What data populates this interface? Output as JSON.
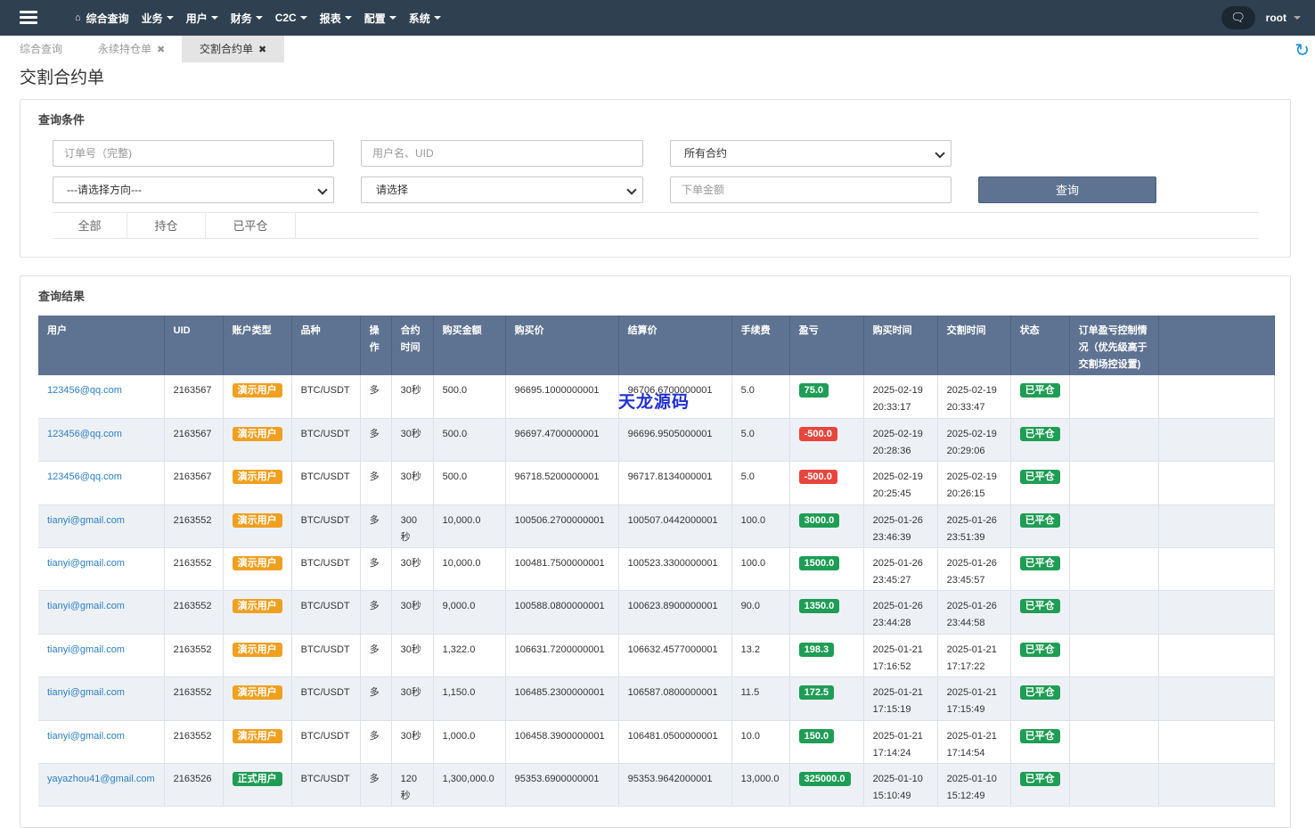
{
  "nav": {
    "items": [
      {
        "label": "综合查询",
        "dropdown": false
      },
      {
        "label": "业务",
        "dropdown": true
      },
      {
        "label": "用户",
        "dropdown": true
      },
      {
        "label": "财务",
        "dropdown": true
      },
      {
        "label": "C2C",
        "dropdown": true
      },
      {
        "label": "报表",
        "dropdown": true
      },
      {
        "label": "配置",
        "dropdown": true
      },
      {
        "label": "系统",
        "dropdown": true
      }
    ],
    "user": "root"
  },
  "tabs": [
    {
      "label": "综合查询",
      "closable": false,
      "active": false
    },
    {
      "label": "永续持仓单",
      "closable": true,
      "active": false
    },
    {
      "label": "交割合约单",
      "closable": true,
      "active": true
    }
  ],
  "page_title": "交割合约单",
  "query": {
    "title": "查询条件",
    "order_placeholder": "订单号（完整)",
    "user_placeholder": "用户名、UID",
    "contract_select": "所有合约",
    "direction_select": "---请选择方向---",
    "type_select": "请选择",
    "amount_placeholder": "下单金额",
    "query_button": "查询",
    "filter_tabs": [
      "全部",
      "持仓",
      "已平仓"
    ]
  },
  "results": {
    "title": "查询结果",
    "columns": [
      "用户",
      "UID",
      "账户类型",
      "品种",
      "操作",
      "合约时间",
      "购买金额",
      "购买价",
      "结算价",
      "手续费",
      "盈亏",
      "购买时间",
      "交割时间",
      "状态",
      "订单盈亏控制情况（优先级高于交割场控设置)",
      ""
    ],
    "rows": [
      {
        "user": "123456@qq.com",
        "uid": "2163567",
        "acct": "演示用户",
        "acct_type": "demo",
        "symbol": "BTC/USDT",
        "op": "多",
        "duration": "30秒",
        "amount": "500.0",
        "buy_price": "96695.1000000001",
        "settle_price": "96706.6700000001",
        "fee": "5.0",
        "pnl": "75.0",
        "pnl_sign": "pos",
        "buy_date": "2025-02-19",
        "buy_time": "20:33:17",
        "settle_date": "2025-02-19",
        "settle_time": "20:33:47",
        "status": "已平仓"
      },
      {
        "user": "123456@qq.com",
        "uid": "2163567",
        "acct": "演示用户",
        "acct_type": "demo",
        "symbol": "BTC/USDT",
        "op": "多",
        "duration": "30秒",
        "amount": "500.0",
        "buy_price": "96697.4700000001",
        "settle_price": "96696.9505000001",
        "fee": "5.0",
        "pnl": "-500.0",
        "pnl_sign": "neg",
        "buy_date": "2025-02-19",
        "buy_time": "20:28:36",
        "settle_date": "2025-02-19",
        "settle_time": "20:29:06",
        "status": "已平仓"
      },
      {
        "user": "123456@qq.com",
        "uid": "2163567",
        "acct": "演示用户",
        "acct_type": "demo",
        "symbol": "BTC/USDT",
        "op": "多",
        "duration": "30秒",
        "amount": "500.0",
        "buy_price": "96718.5200000001",
        "settle_price": "96717.8134000001",
        "fee": "5.0",
        "pnl": "-500.0",
        "pnl_sign": "neg",
        "buy_date": "2025-02-19",
        "buy_time": "20:25:45",
        "settle_date": "2025-02-19",
        "settle_time": "20:26:15",
        "status": "已平仓"
      },
      {
        "user": "tianyi@gmail.com",
        "uid": "2163552",
        "acct": "演示用户",
        "acct_type": "demo",
        "symbol": "BTC/USDT",
        "op": "多",
        "duration": "300秒",
        "amount": "10,000.0",
        "buy_price": "100506.2700000001",
        "settle_price": "100507.0442000001",
        "fee": "100.0",
        "pnl": "3000.0",
        "pnl_sign": "pos",
        "buy_date": "2025-01-26",
        "buy_time": "23:46:39",
        "settle_date": "2025-01-26",
        "settle_time": "23:51:39",
        "status": "已平仓"
      },
      {
        "user": "tianyi@gmail.com",
        "uid": "2163552",
        "acct": "演示用户",
        "acct_type": "demo",
        "symbol": "BTC/USDT",
        "op": "多",
        "duration": "30秒",
        "amount": "10,000.0",
        "buy_price": "100481.7500000001",
        "settle_price": "100523.3300000001",
        "fee": "100.0",
        "pnl": "1500.0",
        "pnl_sign": "pos",
        "buy_date": "2025-01-26",
        "buy_time": "23:45:27",
        "settle_date": "2025-01-26",
        "settle_time": "23:45:57",
        "status": "已平仓"
      },
      {
        "user": "tianyi@gmail.com",
        "uid": "2163552",
        "acct": "演示用户",
        "acct_type": "demo",
        "symbol": "BTC/USDT",
        "op": "多",
        "duration": "30秒",
        "amount": "9,000.0",
        "buy_price": "100588.0800000001",
        "settle_price": "100623.8900000001",
        "fee": "90.0",
        "pnl": "1350.0",
        "pnl_sign": "pos",
        "buy_date": "2025-01-26",
        "buy_time": "23:44:28",
        "settle_date": "2025-01-26",
        "settle_time": "23:44:58",
        "status": "已平仓"
      },
      {
        "user": "tianyi@gmail.com",
        "uid": "2163552",
        "acct": "演示用户",
        "acct_type": "demo",
        "symbol": "BTC/USDT",
        "op": "多",
        "duration": "30秒",
        "amount": "1,322.0",
        "buy_price": "106631.7200000001",
        "settle_price": "106632.4577000001",
        "fee": "13.2",
        "pnl": "198.3",
        "pnl_sign": "pos",
        "buy_date": "2025-01-21",
        "buy_time": "17:16:52",
        "settle_date": "2025-01-21",
        "settle_time": "17:17:22",
        "status": "已平仓"
      },
      {
        "user": "tianyi@gmail.com",
        "uid": "2163552",
        "acct": "演示用户",
        "acct_type": "demo",
        "symbol": "BTC/USDT",
        "op": "多",
        "duration": "30秒",
        "amount": "1,150.0",
        "buy_price": "106485.2300000001",
        "settle_price": "106587.0800000001",
        "fee": "11.5",
        "pnl": "172.5",
        "pnl_sign": "pos",
        "buy_date": "2025-01-21",
        "buy_time": "17:15:19",
        "settle_date": "2025-01-21",
        "settle_time": "17:15:49",
        "status": "已平仓"
      },
      {
        "user": "tianyi@gmail.com",
        "uid": "2163552",
        "acct": "演示用户",
        "acct_type": "demo",
        "symbol": "BTC/USDT",
        "op": "多",
        "duration": "30秒",
        "amount": "1,000.0",
        "buy_price": "106458.3900000001",
        "settle_price": "106481.0500000001",
        "fee": "10.0",
        "pnl": "150.0",
        "pnl_sign": "pos",
        "buy_date": "2025-01-21",
        "buy_time": "17:14:24",
        "settle_date": "2025-01-21",
        "settle_time": "17:14:54",
        "status": "已平仓"
      },
      {
        "user": "yayazhou41@gmail.com",
        "uid": "2163526",
        "acct": "正式用户",
        "acct_type": "real",
        "symbol": "BTC/USDT",
        "op": "多",
        "duration": "120秒",
        "amount": "1,300,000.0",
        "buy_price": "95353.6900000001",
        "settle_price": "95353.9642000001",
        "fee": "13,000.0",
        "pnl": "325000.0",
        "pnl_sign": "pos",
        "buy_date": "2025-01-10",
        "buy_time": "15:10:49",
        "settle_date": "2025-01-10",
        "settle_time": "15:12:49",
        "status": "已平仓"
      }
    ]
  },
  "watermark": "天龙源码",
  "colors": {
    "topbar": "#2f4050",
    "header": "#5e7391",
    "demo": "#f0a020",
    "real": "#1f9d55",
    "loss": "#e8453c"
  }
}
